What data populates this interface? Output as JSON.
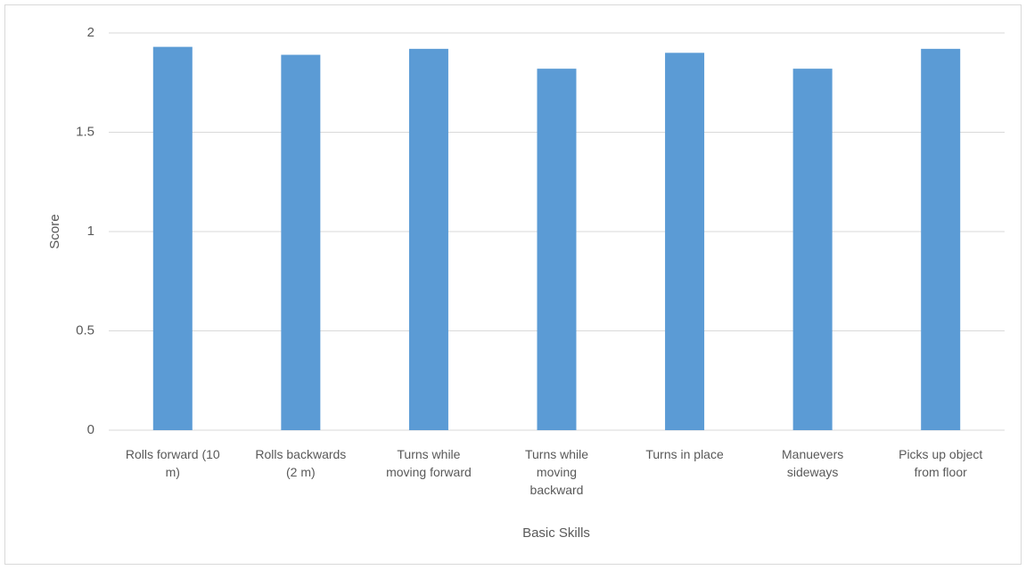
{
  "chart_data": {
    "type": "bar",
    "x_label": "Basic Skills",
    "y_label": "Score",
    "categories": [
      "Rolls forward (10 m)",
      "Rolls backwards (2 m)",
      "Turns while moving forward",
      "Turns while moving backward",
      "Turns in place",
      "Manuevers sideways",
      "Picks up object from floor"
    ],
    "values": [
      1.93,
      1.89,
      1.92,
      1.82,
      1.9,
      1.82,
      1.92
    ],
    "color": "#5b9bd5",
    "ylim": [
      0,
      2
    ],
    "yticks": [
      0,
      0.5,
      1,
      1.5,
      2
    ],
    "grid": true
  }
}
